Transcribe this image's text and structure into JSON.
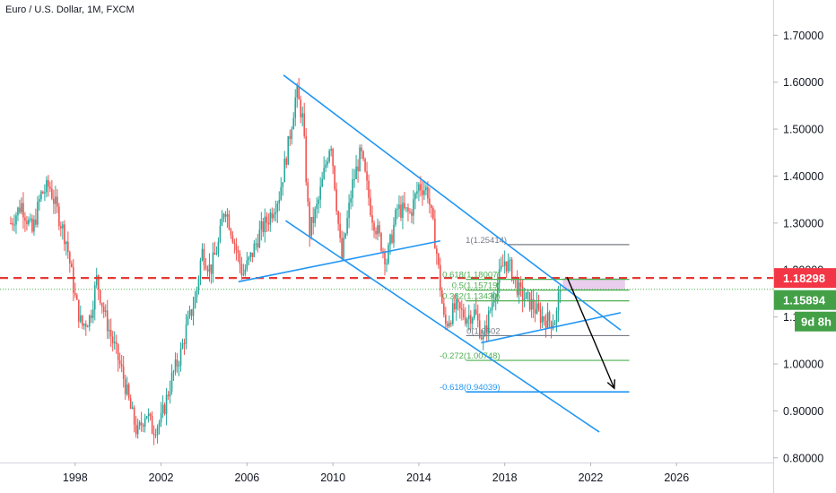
{
  "header": {
    "title": "Euro / U.S. Dollar, 1M, FXCM"
  },
  "chart_data": {
    "type": "candlestick",
    "title": "Euro / U.S. Dollar, 1M, FXCM",
    "xlim": [
      1994.5,
      2030.5
    ],
    "ylim": [
      0.79,
      1.775
    ],
    "x_ticks": [
      "1998",
      "2002",
      "2006",
      "2010",
      "2014",
      "2018",
      "2022",
      "2026"
    ],
    "y_ticks": [
      "1.70000",
      "1.60000",
      "1.50000",
      "1.40000",
      "1.30000",
      "1.20000",
      "1.10000",
      "1.00000",
      "0.90000",
      "0.80000"
    ],
    "colors": {
      "up": "#26a69a",
      "down": "#ef5350",
      "trend": "#2196f3",
      "resistance": "#e53935",
      "fib": "#787b86",
      "price": "#4caf50"
    },
    "price_path": [
      [
        1995.0,
        1.3
      ],
      [
        1995.5,
        1.34
      ],
      [
        1996.0,
        1.28
      ],
      [
        1996.4,
        1.36
      ],
      [
        1996.8,
        1.38
      ],
      [
        1997.2,
        1.32
      ],
      [
        1997.6,
        1.26
      ],
      [
        1998.0,
        1.14
      ],
      [
        1998.3,
        1.08
      ],
      [
        1998.7,
        1.1
      ],
      [
        1999.0,
        1.18
      ],
      [
        1999.4,
        1.1
      ],
      [
        1999.8,
        1.04
      ],
      [
        2000.2,
        0.98
      ],
      [
        2000.6,
        0.9
      ],
      [
        2000.9,
        0.85
      ],
      [
        2001.3,
        0.9
      ],
      [
        2001.6,
        0.86
      ],
      [
        2002.0,
        0.88
      ],
      [
        2002.5,
        0.97
      ],
      [
        2002.9,
        1.02
      ],
      [
        2003.2,
        1.08
      ],
      [
        2003.6,
        1.14
      ],
      [
        2003.9,
        1.24
      ],
      [
        2004.3,
        1.2
      ],
      [
        2004.7,
        1.26
      ],
      [
        2004.95,
        1.34
      ],
      [
        2005.3,
        1.28
      ],
      [
        2005.8,
        1.19
      ],
      [
        2006.2,
        1.23
      ],
      [
        2006.6,
        1.28
      ],
      [
        2007.0,
        1.31
      ],
      [
        2007.5,
        1.36
      ],
      [
        2007.9,
        1.46
      ],
      [
        2008.3,
        1.58
      ],
      [
        2008.6,
        1.52
      ],
      [
        2008.9,
        1.28
      ],
      [
        2009.3,
        1.34
      ],
      [
        2009.9,
        1.48
      ],
      [
        2010.4,
        1.22
      ],
      [
        2010.9,
        1.38
      ],
      [
        2011.3,
        1.45
      ],
      [
        2011.8,
        1.32
      ],
      [
        2012.5,
        1.22
      ],
      [
        2013.0,
        1.33
      ],
      [
        2013.6,
        1.32
      ],
      [
        2014.0,
        1.38
      ],
      [
        2014.4,
        1.37
      ],
      [
        2014.8,
        1.25
      ],
      [
        2015.2,
        1.08
      ],
      [
        2015.7,
        1.12
      ],
      [
        2016.2,
        1.1
      ],
      [
        2016.6,
        1.11
      ],
      [
        2017.0,
        1.05
      ],
      [
        2017.5,
        1.15
      ],
      [
        2018.0,
        1.22
      ],
      [
        2018.3,
        1.2
      ],
      [
        2018.7,
        1.15
      ],
      [
        2019.2,
        1.13
      ],
      [
        2019.7,
        1.1
      ],
      [
        2020.2,
        1.09
      ],
      [
        2020.4,
        1.1
      ],
      [
        2020.6,
        1.18
      ]
    ],
    "trendlines": [
      {
        "x1": 2007.7,
        "y1": 1.615,
        "x2": 2023.4,
        "y2": 1.072
      },
      {
        "x1": 2007.8,
        "y1": 1.305,
        "x2": 2022.4,
        "y2": 0.855
      },
      {
        "x1": 2005.6,
        "y1": 1.175,
        "x2": 2015.0,
        "y2": 1.262
      },
      {
        "x1": 2016.9,
        "y1": 1.045,
        "x2": 2023.4,
        "y2": 1.109
      }
    ],
    "resistance_level": 1.18298,
    "current_price": 1.15894,
    "price_labels": [
      "1.18298",
      "1.15894"
    ],
    "countdown": "9d 8h",
    "fib_levels": [
      {
        "ratio": "1",
        "value": 1.25414,
        "label": "1(1.25414)"
      },
      {
        "ratio": "0.618",
        "value": 1.18007,
        "label": "0.618(1.18007)"
      },
      {
        "ratio": "0.5",
        "value": 1.15719,
        "label": "0.5(1.15719)"
      },
      {
        "ratio": "0.382",
        "value": 1.1343,
        "label": "0.382(1.13430)"
      },
      {
        "ratio": "0",
        "value": 1.0602,
        "label": "0(1.0602"
      },
      {
        "ratio": "-0.272",
        "value": 1.00748,
        "label": "-0.272(1.00748)"
      },
      {
        "ratio": "-0.618",
        "value": 0.94039,
        "label": "-0.618(0.94039)"
      }
    ],
    "fib_x_range": [
      2016.2,
      2023.8
    ],
    "supply_zone": {
      "x1": 2020.7,
      "x2": 2023.6,
      "y_top": 1.183,
      "y_bottom": 1.157
    },
    "projection": [
      {
        "x": 2020.9,
        "y": 1.185
      },
      {
        "x": 2023.1,
        "y": 0.948
      }
    ]
  }
}
